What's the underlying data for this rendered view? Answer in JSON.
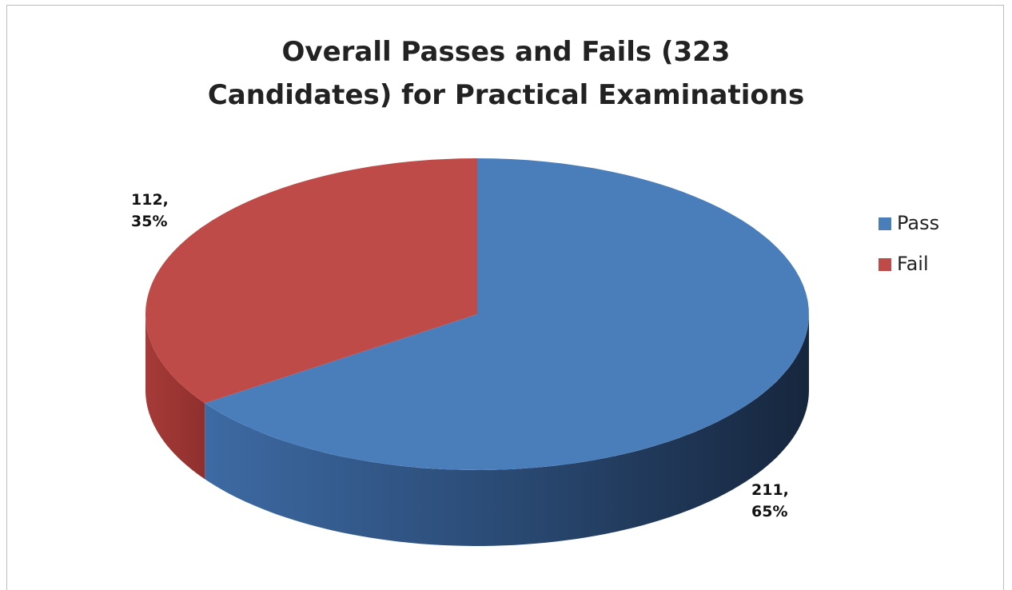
{
  "chart_data": {
    "type": "pie",
    "title": "Overall Passes and Fails (323 Candidates) for Practical Examinations",
    "categories": [
      "Pass",
      "Fail"
    ],
    "values": [
      211,
      112
    ],
    "value_labels": [
      "211, 65%",
      "112, 35%"
    ],
    "colors": [
      "#4a7ebb",
      "#be4b48"
    ],
    "legend": "right"
  }
}
